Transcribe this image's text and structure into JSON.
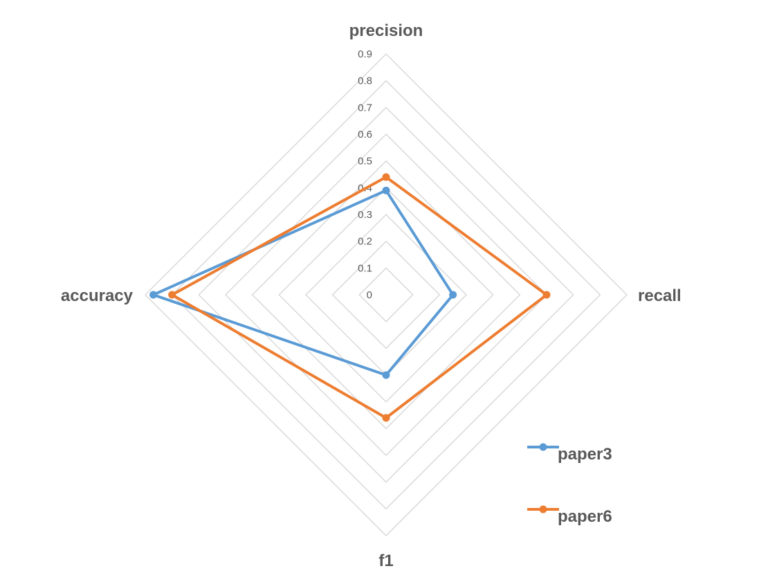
{
  "chart_data": {
    "type": "radar",
    "axes": [
      "precision",
      "recall",
      "f1",
      "accuracy"
    ],
    "ticks": [
      "0",
      "0.1",
      "0.2",
      "0.3",
      "0.4",
      "0.5",
      "0.6",
      "0.7",
      "0.8",
      "0.9"
    ],
    "rlim": [
      0,
      0.9
    ],
    "grid": true,
    "legend_position": "bottom-right",
    "series": [
      {
        "name": "paper3",
        "color": "#5b9bd5",
        "values": [
          0.39,
          0.25,
          0.3,
          0.87
        ]
      },
      {
        "name": "paper6",
        "color": "#ed7d31",
        "values": [
          0.44,
          0.6,
          0.46,
          0.8
        ]
      }
    ]
  }
}
